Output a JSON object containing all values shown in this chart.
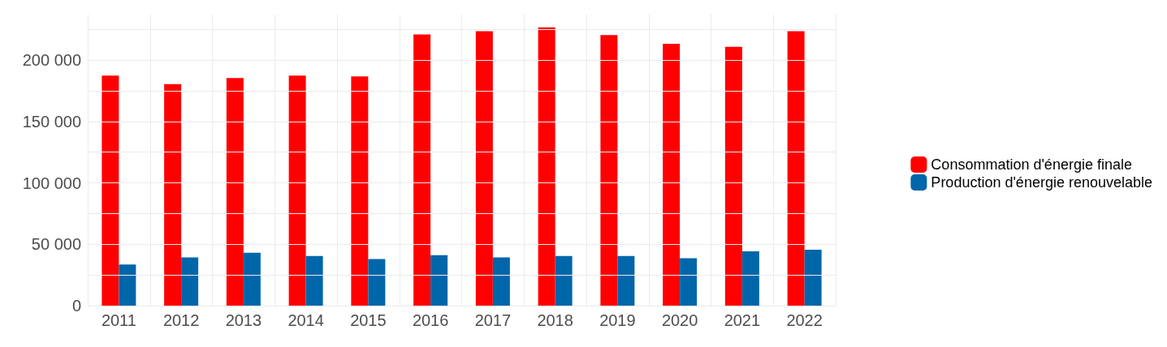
{
  "chart_data": {
    "type": "bar",
    "categories": [
      "2011",
      "2012",
      "2013",
      "2014",
      "2015",
      "2016",
      "2017",
      "2018",
      "2019",
      "2020",
      "2021",
      "2022"
    ],
    "series": [
      {
        "name": "Consommation d'énergie finale",
        "color": "#ff0000",
        "values": [
          187300,
          180400,
          185400,
          187300,
          186700,
          220900,
          223400,
          226600,
          220300,
          213300,
          210800,
          223400
        ]
      },
      {
        "name": "Production d'énergie renouvelable",
        "color": "#0066aa",
        "values": [
          33500,
          39200,
          43000,
          40500,
          38000,
          41100,
          39200,
          40500,
          40500,
          38600,
          44300,
          45600
        ]
      }
    ],
    "ylim": [
      0,
      237000
    ],
    "yticks": [
      {
        "value": 0,
        "label": "0"
      },
      {
        "value": 50000,
        "label": "50 000"
      },
      {
        "value": 100000,
        "label": "100 000"
      },
      {
        "value": 150000,
        "label": "150 000"
      },
      {
        "value": 200000,
        "label": "200 000"
      }
    ],
    "grid": true,
    "legend": "right"
  }
}
